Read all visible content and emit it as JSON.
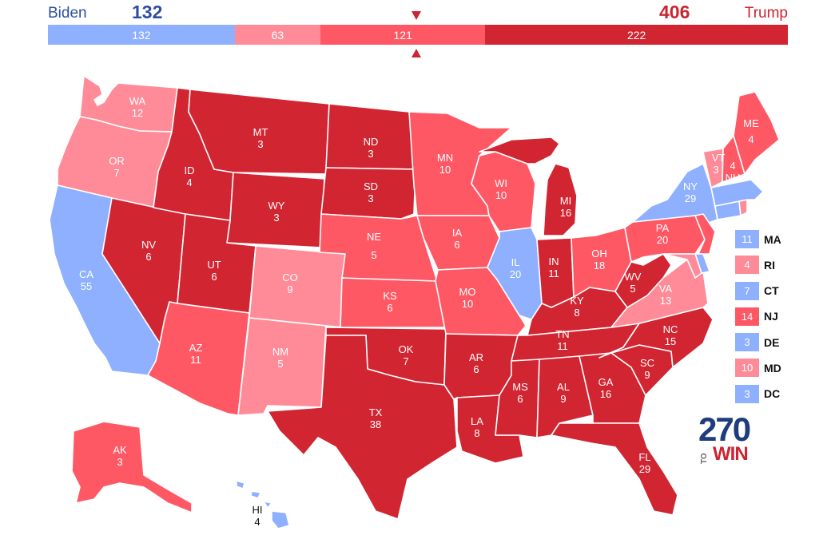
{
  "header": {
    "dem_name": "Biden",
    "dem_total": "132",
    "rep_name": "Trump",
    "rep_total": "406",
    "bar": [
      {
        "label": "132",
        "value": 132,
        "color": "#8eb0ff"
      },
      {
        "label": "63",
        "value": 63,
        "color": "#ff8b98"
      },
      {
        "label": "121",
        "value": 121,
        "color": "#ff5865"
      },
      {
        "label": "222",
        "value": 222,
        "color": "#d22532"
      }
    ]
  },
  "colors": {
    "safe_dem": "#8eb0ff",
    "lean_rep": "#ff8b98",
    "likely_rep": "#ff5865",
    "safe_rep": "#d22532"
  },
  "states": {
    "WA": {
      "abbr": "WA",
      "ev": "12"
    },
    "OR": {
      "abbr": "OR",
      "ev": "7"
    },
    "CA": {
      "abbr": "CA",
      "ev": "55"
    },
    "NV": {
      "abbr": "NV",
      "ev": "6"
    },
    "ID": {
      "abbr": "ID",
      "ev": "4"
    },
    "MT": {
      "abbr": "MT",
      "ev": "3"
    },
    "WY": {
      "abbr": "WY",
      "ev": "3"
    },
    "UT": {
      "abbr": "UT",
      "ev": "6"
    },
    "AZ": {
      "abbr": "AZ",
      "ev": "11"
    },
    "CO": {
      "abbr": "CO",
      "ev": "9"
    },
    "NM": {
      "abbr": "NM",
      "ev": "5"
    },
    "ND": {
      "abbr": "ND",
      "ev": "3"
    },
    "SD": {
      "abbr": "SD",
      "ev": "3"
    },
    "NE": {
      "abbr": "NE",
      "ev": "5"
    },
    "KS": {
      "abbr": "KS",
      "ev": "6"
    },
    "OK": {
      "abbr": "OK",
      "ev": "7"
    },
    "TX": {
      "abbr": "TX",
      "ev": "38"
    },
    "MN": {
      "abbr": "MN",
      "ev": "10"
    },
    "IA": {
      "abbr": "IA",
      "ev": "6"
    },
    "MO": {
      "abbr": "MO",
      "ev": "10"
    },
    "AR": {
      "abbr": "AR",
      "ev": "6"
    },
    "LA": {
      "abbr": "LA",
      "ev": "8"
    },
    "WI": {
      "abbr": "WI",
      "ev": "10"
    },
    "IL": {
      "abbr": "IL",
      "ev": "20"
    },
    "MI": {
      "abbr": "MI",
      "ev": "16"
    },
    "IN": {
      "abbr": "IN",
      "ev": "11"
    },
    "OH": {
      "abbr": "OH",
      "ev": "18"
    },
    "KY": {
      "abbr": "KY",
      "ev": "8"
    },
    "TN": {
      "abbr": "TN",
      "ev": "11"
    },
    "MS": {
      "abbr": "MS",
      "ev": "6"
    },
    "AL": {
      "abbr": "AL",
      "ev": "9"
    },
    "GA": {
      "abbr": "GA",
      "ev": "16"
    },
    "FL": {
      "abbr": "FL",
      "ev": "29"
    },
    "SC": {
      "abbr": "SC",
      "ev": "9"
    },
    "NC": {
      "abbr": "NC",
      "ev": "15"
    },
    "VA": {
      "abbr": "VA",
      "ev": "13"
    },
    "WV": {
      "abbr": "WV",
      "ev": "5"
    },
    "PA": {
      "abbr": "PA",
      "ev": "20"
    },
    "NY": {
      "abbr": "NY",
      "ev": "29"
    },
    "VT": {
      "abbr": "VT",
      "ev": "3"
    },
    "NH": {
      "abbr": "NH",
      "ev": "4"
    },
    "NH_label": "NH",
    "ME": {
      "abbr": "ME",
      "ev": "4"
    },
    "AK": {
      "abbr": "AK",
      "ev": "3"
    },
    "HI": {
      "abbr": "HI",
      "ev": "4"
    }
  },
  "small_states": [
    {
      "abbr": "MA",
      "ev": "11",
      "color": "#8eb0ff"
    },
    {
      "abbr": "RI",
      "ev": "4",
      "color": "#ff8b98"
    },
    {
      "abbr": "CT",
      "ev": "7",
      "color": "#8eb0ff"
    },
    {
      "abbr": "NJ",
      "ev": "14",
      "color": "#ff5865"
    },
    {
      "abbr": "DE",
      "ev": "3",
      "color": "#8eb0ff"
    },
    {
      "abbr": "MD",
      "ev": "10",
      "color": "#ff8b98"
    },
    {
      "abbr": "DC",
      "ev": "3",
      "color": "#8eb0ff"
    }
  ],
  "logo": {
    "number": "270",
    "to": "TO",
    "win": "WIN"
  }
}
